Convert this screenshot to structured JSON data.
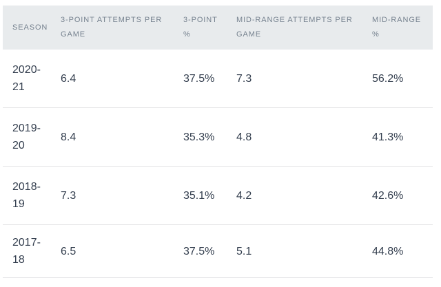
{
  "chart_data": {
    "type": "table",
    "title": "",
    "columns": [
      "SEASON",
      "3-POINT ATTEMPTS PER GAME",
      "3-POINT %",
      "MID-RANGE ATTEMPTS PER GAME",
      "MID-RANGE %"
    ],
    "rows": [
      [
        "2020-21",
        "6.4",
        "37.5%",
        "7.3",
        "56.2%"
      ],
      [
        "2019-20",
        "8.4",
        "35.3%",
        "4.8",
        "41.3%"
      ],
      [
        "2018-19",
        "7.3",
        "35.1%",
        "4.2",
        "42.6%"
      ],
      [
        "2017-18",
        "6.5",
        "37.5%",
        "5.1",
        "44.8%"
      ]
    ]
  },
  "colors": {
    "header_background": "#e8ebed",
    "header_text": "#76828f",
    "body_text": "#333e4e",
    "row_divider": "#e3e3e5",
    "page_background": "#ffffff"
  }
}
